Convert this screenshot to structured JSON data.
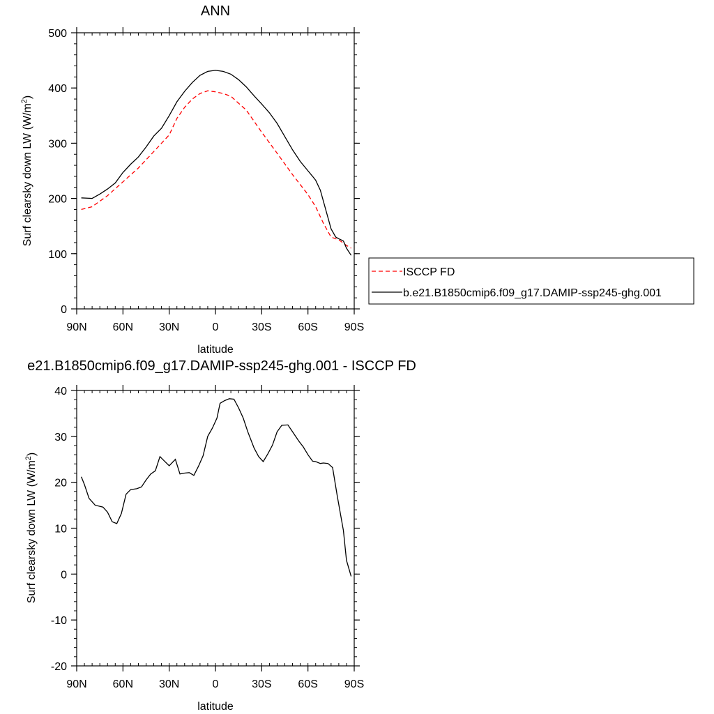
{
  "chart_data": [
    {
      "type": "line",
      "title": "ANN",
      "xlabel": "latitude",
      "ylabel": "Surf clearsky down LW (W/m",
      "ylabel_sup": "2",
      "ylabel_tail": ")",
      "xlim": [
        90,
        -90
      ],
      "ylim": [
        0,
        500
      ],
      "xticks": [
        90,
        60,
        30,
        0,
        -30,
        -60,
        -90
      ],
      "xtick_labels": [
        "90N",
        "60N",
        "30N",
        "0",
        "30S",
        "60S",
        "90S"
      ],
      "yticks": [
        0,
        100,
        200,
        300,
        400,
        500
      ],
      "ytick_labels": [
        "0",
        "100",
        "200",
        "300",
        "400",
        "500"
      ],
      "legend": "right-bottom, outside plot",
      "series": [
        {
          "name": "ISCCP FD",
          "color": "#ff0000",
          "dash": "dashed",
          "x": [
            87,
            80,
            70,
            60,
            50,
            40,
            30,
            25,
            20,
            15,
            10,
            5,
            0,
            -5,
            -10,
            -20,
            -30,
            -40,
            -50,
            -60,
            -65,
            -70,
            -75,
            -80,
            -85,
            -88
          ],
          "y": [
            180,
            185,
            205,
            230,
            255,
            285,
            315,
            345,
            365,
            380,
            390,
            395,
            393,
            390,
            385,
            360,
            320,
            282,
            243,
            207,
            185,
            155,
            130,
            125,
            115,
            110
          ]
        },
        {
          "name": "b.e21.B1850cmip6.f09_g17.DAMIP-ssp245-ghg.001",
          "color": "#000000",
          "dash": "solid",
          "x": [
            87,
            80,
            75,
            70,
            65,
            60,
            55,
            50,
            45,
            40,
            35,
            30,
            25,
            20,
            15,
            10,
            5,
            0,
            -5,
            -10,
            -15,
            -20,
            -25,
            -30,
            -35,
            -40,
            -45,
            -50,
            -55,
            -60,
            -63,
            -65,
            -68,
            -70,
            -73,
            -75,
            -78,
            -80,
            -83,
            -85,
            -88
          ],
          "y": [
            201,
            200,
            208,
            217,
            228,
            247,
            262,
            275,
            293,
            313,
            327,
            350,
            375,
            394,
            410,
            423,
            430,
            432,
            430,
            425,
            415,
            402,
            386,
            371,
            355,
            336,
            312,
            288,
            267,
            250,
            240,
            233,
            215,
            195,
            165,
            145,
            130,
            127,
            123,
            110,
            97
          ]
        }
      ]
    },
    {
      "type": "line",
      "title": "e21.B1850cmip6.f09_g17.DAMIP-ssp245-ghg.001 - ISCCP FD",
      "xlabel": "latitude",
      "ylabel": "Surf clearsky down LW (W/m",
      "ylabel_sup": "2",
      "ylabel_tail": ")",
      "xlim": [
        90,
        -90
      ],
      "ylim": [
        -20,
        40
      ],
      "xticks": [
        90,
        60,
        30,
        0,
        -30,
        -60,
        -90
      ],
      "xtick_labels": [
        "90N",
        "60N",
        "30N",
        "0",
        "30S",
        "60S",
        "90S"
      ],
      "yticks": [
        -20,
        -10,
        0,
        10,
        20,
        30,
        40
      ],
      "ytick_labels": [
        "-20",
        "-10",
        "0",
        "10",
        "20",
        "30",
        "40"
      ],
      "series": [
        {
          "color": "#000000",
          "dash": "solid",
          "x": [
            87,
            85,
            82,
            78,
            73,
            70,
            67,
            64,
            61,
            58,
            55,
            51,
            48,
            45,
            42,
            39,
            36,
            33,
            30,
            26,
            23,
            20,
            17,
            14,
            11,
            8,
            5,
            2,
            -1,
            -3,
            -6,
            -9,
            -12,
            -15,
            -18,
            -21,
            -25,
            -28,
            -31,
            -34,
            -37,
            -40,
            -43,
            -47,
            -50,
            -54,
            -57,
            -60,
            -63,
            -65,
            -68,
            -70,
            -73,
            -76,
            -79,
            -83,
            -85,
            -88
          ],
          "y": [
            21.2,
            19.5,
            16.5,
            15,
            14.6,
            13.5,
            11.4,
            11,
            13.2,
            17.4,
            18.4,
            18.6,
            19,
            20.5,
            21.8,
            22.5,
            25.6,
            24.6,
            23.6,
            25,
            21.8,
            22,
            22.1,
            21.5,
            23.5,
            25.8,
            30,
            31.8,
            34,
            37.2,
            37.8,
            38.2,
            38.1,
            36.2,
            34,
            31,
            27.5,
            25.6,
            24.5,
            26.2,
            28.1,
            31,
            32.4,
            32.5,
            31,
            29,
            27.7,
            26,
            24.6,
            24.5,
            24.1,
            24.2,
            24.1,
            23.2,
            17,
            9.5,
            3,
            -0.5
          ]
        }
      ]
    }
  ]
}
